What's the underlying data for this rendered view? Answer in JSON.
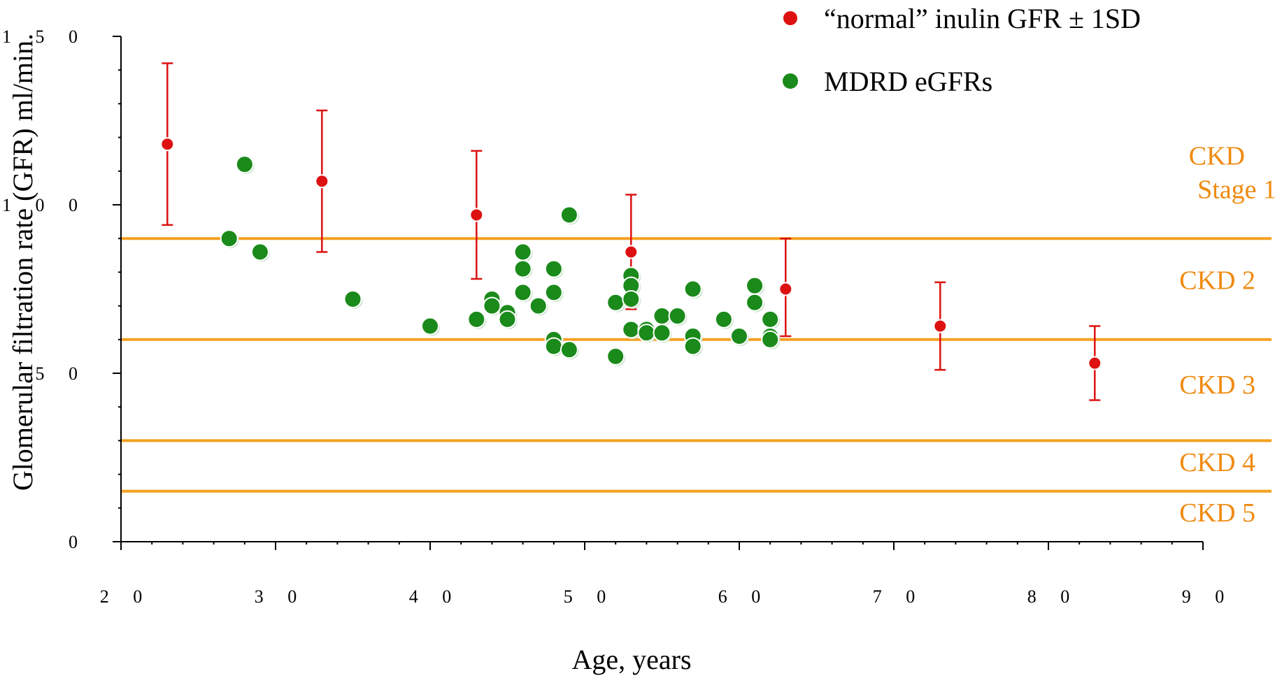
{
  "chart_data": {
    "type": "scatter",
    "xlabel": "Age, years",
    "ylabel": "Glomerular filtration rate (GFR) ml/min.",
    "xlim": [
      20,
      90
    ],
    "ylim": [
      0,
      150
    ],
    "x_ticks": [
      "2 0",
      "3 0",
      "4 0",
      "5 0",
      "6 0",
      "7 0",
      "8 0",
      "9 0"
    ],
    "x_tick_values": [
      20,
      30,
      40,
      50,
      60,
      70,
      80,
      90
    ],
    "y_ticks": [
      "0",
      "5 0",
      "1 0 0",
      "1 5 0"
    ],
    "y_tick_values": [
      0,
      50,
      100,
      150
    ],
    "legend_position": "top-right",
    "series": [
      {
        "name": "“normal” inulin GFR ± 1SD",
        "color": "#dd1111",
        "error_bars": true,
        "points": [
          {
            "x": 23,
            "y": 118,
            "low": 94,
            "high": 142
          },
          {
            "x": 33,
            "y": 107,
            "low": 86,
            "high": 128
          },
          {
            "x": 43,
            "y": 97,
            "low": 78,
            "high": 116
          },
          {
            "x": 53,
            "y": 86,
            "low": 69,
            "high": 103
          },
          {
            "x": 63,
            "y": 75,
            "low": 61,
            "high": 90
          },
          {
            "x": 73,
            "y": 64,
            "low": 51,
            "high": 77
          },
          {
            "x": 83,
            "y": 53,
            "low": 42,
            "high": 64
          }
        ]
      },
      {
        "name": "MDRD eGFRs",
        "color": "#1a8a1a",
        "points": [
          {
            "x": 27,
            "y": 90
          },
          {
            "x": 28,
            "y": 112
          },
          {
            "x": 29,
            "y": 86
          },
          {
            "x": 35,
            "y": 72
          },
          {
            "x": 40,
            "y": 64
          },
          {
            "x": 43,
            "y": 66
          },
          {
            "x": 44,
            "y": 72
          },
          {
            "x": 44,
            "y": 70
          },
          {
            "x": 45,
            "y": 68
          },
          {
            "x": 45,
            "y": 66
          },
          {
            "x": 46,
            "y": 86
          },
          {
            "x": 46,
            "y": 81
          },
          {
            "x": 46,
            "y": 74
          },
          {
            "x": 47,
            "y": 70
          },
          {
            "x": 48,
            "y": 81
          },
          {
            "x": 48,
            "y": 74
          },
          {
            "x": 48,
            "y": 60
          },
          {
            "x": 48,
            "y": 58
          },
          {
            "x": 49,
            "y": 97
          },
          {
            "x": 49,
            "y": 57
          },
          {
            "x": 52,
            "y": 71
          },
          {
            "x": 52,
            "y": 55
          },
          {
            "x": 53,
            "y": 79
          },
          {
            "x": 53,
            "y": 76
          },
          {
            "x": 53,
            "y": 72
          },
          {
            "x": 53,
            "y": 63
          },
          {
            "x": 54,
            "y": 63
          },
          {
            "x": 54,
            "y": 62
          },
          {
            "x": 55,
            "y": 67
          },
          {
            "x": 55,
            "y": 62
          },
          {
            "x": 56,
            "y": 67
          },
          {
            "x": 57,
            "y": 75
          },
          {
            "x": 57,
            "y": 61
          },
          {
            "x": 57,
            "y": 58
          },
          {
            "x": 59,
            "y": 66
          },
          {
            "x": 60,
            "y": 61
          },
          {
            "x": 61,
            "y": 76
          },
          {
            "x": 61,
            "y": 71
          },
          {
            "x": 62,
            "y": 66
          },
          {
            "x": 62,
            "y": 61
          },
          {
            "x": 62,
            "y": 60
          }
        ]
      }
    ],
    "reference_lines": {
      "color": "#f5a020",
      "y_values": [
        90,
        60,
        30,
        15
      ]
    },
    "band_labels": {
      "color": "#f08a10",
      "items": [
        {
          "lines": [
            "CKD",
            "Stage 1"
          ],
          "y": 102
        },
        {
          "lines": [
            "CKD 2"
          ],
          "y": 75
        },
        {
          "lines": [
            "CKD 3"
          ],
          "y": 44
        },
        {
          "lines": [
            "CKD 4"
          ],
          "y": 21
        },
        {
          "lines": [
            "CKD 5"
          ],
          "y": 6
        }
      ]
    }
  }
}
